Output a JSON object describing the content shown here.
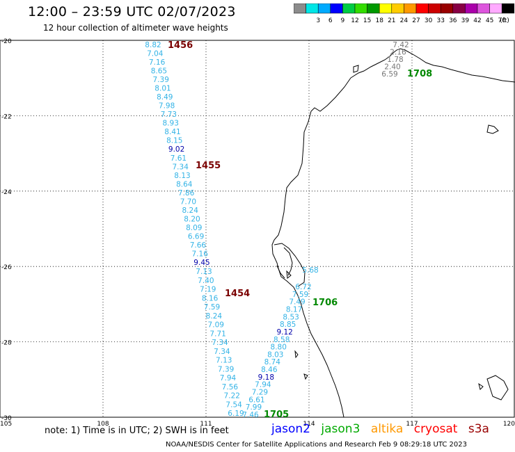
{
  "title": "12:00 – 23:59 UTC 02/07/2023",
  "subtitle": "12 hour collection of altimeter wave heights",
  "colorbar": {
    "unit": "(ft)",
    "bins": [
      {
        "label": "",
        "color": "#8c8c8c"
      },
      {
        "label": "3",
        "color": "#00e6e6"
      },
      {
        "label": "6",
        "color": "#00aaff"
      },
      {
        "label": "9",
        "color": "#0000ff"
      },
      {
        "label": "12",
        "color": "#00cc44"
      },
      {
        "label": "15",
        "color": "#33dd00"
      },
      {
        "label": "18",
        "color": "#009900"
      },
      {
        "label": "21",
        "color": "#ffff00"
      },
      {
        "label": "24",
        "color": "#ffcc00"
      },
      {
        "label": "27",
        "color": "#ff9900"
      },
      {
        "label": "30",
        "color": "#ff0000"
      },
      {
        "label": "33",
        "color": "#cc0000"
      },
      {
        "label": "36",
        "color": "#990000"
      },
      {
        "label": "39",
        "color": "#880044"
      },
      {
        "label": "42",
        "color": "#aa00aa"
      },
      {
        "label": "45",
        "color": "#dd55dd"
      },
      {
        "label": "70",
        "color": "#ffaaff"
      },
      {
        "label": "",
        "color": "#000000"
      }
    ]
  },
  "axes": {
    "lat_labels": [
      "-20",
      "-22",
      "-24",
      "-26",
      "-28",
      "-30"
    ],
    "lon_labels": [
      "105",
      "108",
      "111",
      "114",
      "117",
      "120"
    ]
  },
  "colors": {
    "track_light": "#33b3e6",
    "track_dark": "#0000aa",
    "track_grey": "#777777",
    "time_red": "#7a0000",
    "time_green": "#008800"
  },
  "passes": {
    "p1456": {
      "time": "1456",
      "values": [
        "8.82",
        "7.04",
        "7.16",
        "8.65",
        "7.39",
        "8.01",
        "8.49",
        "7.98",
        "7.73",
        "8.93",
        "8.41",
        "8.15",
        "9.02",
        "7.61",
        "7.34",
        "8.13",
        "8.64",
        "7.86",
        "7.70",
        "8.24",
        "8.20",
        "8.09",
        "6.69",
        "7.66",
        "7.16",
        "9.45"
      ]
    },
    "p1455": {
      "time": "1455"
    },
    "p1454": {
      "time": "1454",
      "values": [
        "7.13",
        "7.40",
        "7.19",
        "8.16",
        "7.59",
        "8.24",
        "7.09",
        "7.71",
        "7.34",
        "7.34",
        "7.13",
        "7.39",
        "7.94",
        "7.56",
        "7.22",
        "7.54",
        "6.19"
      ]
    },
    "p1706": {
      "time": "1706",
      "values": [
        "6.72",
        "7.59",
        "7.49",
        "8.17",
        "8.53",
        "8.85",
        "9.12",
        "8.58",
        "8.80",
        "8.03",
        "8.74",
        "8.46",
        "9.18",
        "7.94",
        "7.29",
        "6.61",
        "7.99",
        "7.46"
      ]
    },
    "p1705": {
      "time": "1705"
    },
    "p1708": {
      "time": "1708",
      "values": [
        "7.42",
        "2.16",
        "1.78",
        "2.40",
        "6.59"
      ]
    },
    "extra": [
      "5.68"
    ]
  },
  "note": "note:  1) Time is in UTC;  2) SWH is in feet",
  "satellites": [
    {
      "name": "jason2",
      "color": "#0000ff"
    },
    {
      "name": "jason3",
      "color": "#00aa00"
    },
    {
      "name": "altika",
      "color": "#ff9900"
    },
    {
      "name": "cryosat",
      "color": "#ff0000"
    },
    {
      "name": "s3a",
      "color": "#990000"
    }
  ],
  "credit": "NOAA/NESDIS Center for Satellite Applications and Research    Feb  9 08:29:18 UTC 2023"
}
